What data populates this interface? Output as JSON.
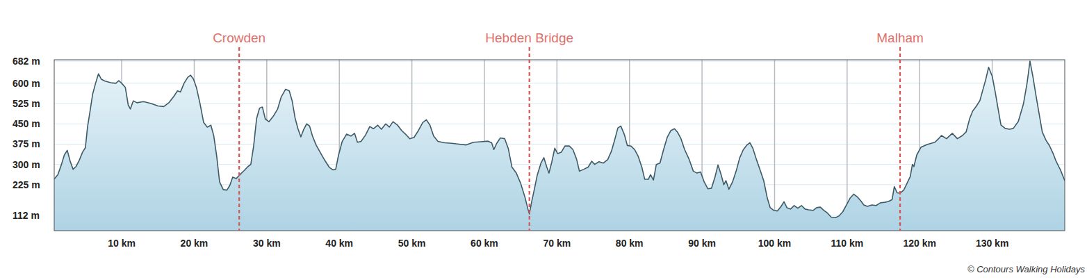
{
  "chart_data": {
    "type": "area",
    "color": "#3d5a66",
    "grid": true,
    "xlim": [
      0.7,
      140
    ],
    "ylim": [
      55,
      687
    ],
    "xticks": [
      {
        "value": 10,
        "label": "10 km"
      },
      {
        "value": 20,
        "label": "20 km"
      },
      {
        "value": 30,
        "label": "30 km"
      },
      {
        "value": 40,
        "label": "40 km"
      },
      {
        "value": 50,
        "label": "50 km"
      },
      {
        "value": 60,
        "label": "60 km"
      },
      {
        "value": 70,
        "label": "70 km"
      },
      {
        "value": 80,
        "label": "80 km"
      },
      {
        "value": 90,
        "label": "90 km"
      },
      {
        "value": 100,
        "label": "100 km"
      },
      {
        "value": 110,
        "label": "110 km"
      },
      {
        "value": 120,
        "label": "120 km"
      },
      {
        "value": 130,
        "label": "130 km"
      }
    ],
    "yticks": [
      {
        "value": 112,
        "label": "112 m"
      },
      {
        "value": 225,
        "label": "225 m"
      },
      {
        "value": 300,
        "label": "300 m"
      },
      {
        "value": 375,
        "label": "375 m"
      },
      {
        "value": 450,
        "label": "450 m"
      },
      {
        "value": 525,
        "label": "525 m"
      },
      {
        "value": 600,
        "label": "600 m"
      },
      {
        "value": 682,
        "label": "682 m"
      }
    ],
    "annotations": [
      {
        "label": "Crowden",
        "x": 26.2
      },
      {
        "label": "Hebden Bridge",
        "x": 66.2
      },
      {
        "label": "Malham",
        "x": 117.3
      }
    ],
    "credit": "© Contours Walking Holidays",
    "x": [
      0.7,
      1.2,
      1.7,
      2.1,
      2.5,
      2.9,
      3.3,
      3.7,
      4.1,
      4.6,
      5.0,
      5.3,
      5.6,
      6.0,
      6.4,
      6.8,
      7.2,
      7.7,
      8.5,
      9.2,
      9.6,
      10.0,
      10.5,
      10.9,
      11.2,
      11.6,
      12.1,
      13.0,
      14.0,
      15.0,
      15.8,
      16.5,
      17.2,
      17.7,
      18.1,
      18.6,
      19.1,
      19.5,
      19.9,
      20.3,
      20.8,
      21.3,
      21.8,
      22.3,
      22.7,
      23.1,
      23.5,
      24.0,
      24.5,
      24.9,
      25.3,
      25.8,
      26.3,
      26.9,
      27.4,
      27.8,
      28.2,
      28.6,
      29.0,
      29.4,
      29.8,
      30.3,
      30.9,
      31.5,
      32.0,
      32.6,
      33.1,
      33.5,
      33.9,
      34.3,
      34.7,
      35.1,
      35.5,
      35.9,
      36.3,
      36.8,
      37.4,
      38.0,
      38.6,
      39.1,
      39.5,
      39.9,
      40.4,
      41.0,
      41.6,
      42.1,
      42.5,
      43.0,
      43.6,
      44.2,
      44.7,
      45.3,
      45.8,
      46.4,
      46.9,
      47.4,
      48.0,
      48.6,
      49.2,
      49.7,
      50.3,
      50.9,
      51.5,
      52.0,
      52.5,
      53.0,
      53.6,
      54.5,
      55.5,
      56.5,
      57.5,
      58.5,
      59.5,
      60.5,
      61.0,
      61.3,
      61.7,
      62.2,
      62.8,
      63.3,
      63.8,
      64.4,
      65.0,
      65.6,
      66.0,
      66.2,
      66.5,
      66.9,
      67.3,
      67.8,
      68.2,
      68.6,
      68.9,
      69.3,
      69.7,
      70.1,
      70.6,
      71.1,
      71.7,
      72.2,
      72.7,
      73.1,
      73.7,
      74.3,
      74.8,
      75.2,
      75.8,
      76.4,
      77.0,
      77.5,
      77.9,
      78.4,
      78.8,
      79.3,
      79.7,
      80.2,
      80.7,
      81.2,
      81.7,
      82.1,
      82.6,
      82.9,
      83.3,
      83.7,
      84.2,
      84.7,
      85.2,
      85.7,
      86.2,
      86.6,
      87.1,
      87.6,
      88.2,
      88.8,
      89.3,
      89.8,
      90.3,
      90.8,
      91.3,
      91.8,
      92.2,
      92.6,
      93.0,
      93.3,
      93.7,
      94.2,
      94.7,
      95.2,
      95.7,
      96.2,
      96.6,
      97.0,
      97.5,
      98.0,
      98.5,
      99.0,
      99.4,
      99.9,
      100.4,
      100.9,
      101.3,
      101.7,
      102.2,
      102.7,
      103.2,
      103.7,
      104.2,
      104.7,
      105.3,
      105.8,
      106.3,
      106.8,
      107.3,
      107.8,
      108.4,
      108.9,
      109.4,
      109.9,
      110.4,
      110.9,
      111.4,
      111.9,
      112.3,
      112.8,
      113.4,
      114.0,
      114.6,
      115.2,
      115.7,
      116.2,
      116.5,
      116.9,
      117.3,
      117.8,
      118.2,
      118.7,
      119.0,
      119.2,
      119.6,
      120.2,
      121.1,
      122.1,
      122.6,
      123.0,
      123.7,
      124.5,
      125.2,
      125.9,
      126.4,
      126.9,
      127.3,
      127.8,
      128.3,
      128.7,
      129.1,
      129.5,
      130.0,
      130.4,
      130.7,
      131.2,
      131.8,
      132.4,
      132.9,
      133.6,
      134.3,
      134.8,
      135.0,
      135.2,
      135.6,
      136.0,
      136.4,
      136.9,
      137.4,
      137.9,
      138.4,
      138.8,
      139.4,
      140.0
    ],
    "values": [
      246,
      262,
      300,
      335,
      352,
      312,
      282,
      292,
      312,
      345,
      362,
      440,
      490,
      560,
      600,
      635,
      615,
      608,
      602,
      600,
      610,
      600,
      585,
      520,
      505,
      535,
      528,
      532,
      526,
      516,
      514,
      528,
      552,
      572,
      568,
      600,
      622,
      630,
      615,
      585,
      525,
      455,
      438,
      445,
      405,
      330,
      235,
      207,
      205,
      222,
      253,
      248,
      262,
      278,
      292,
      300,
      370,
      470,
      508,
      512,
      468,
      458,
      478,
      505,
      550,
      578,
      572,
      535,
      472,
      432,
      402,
      430,
      450,
      442,
      405,
      372,
      343,
      315,
      290,
      280,
      282,
      335,
      385,
      412,
      405,
      415,
      382,
      385,
      408,
      440,
      432,
      445,
      430,
      450,
      438,
      458,
      446,
      425,
      410,
      395,
      400,
      425,
      455,
      465,
      445,
      405,
      385,
      380,
      378,
      375,
      372,
      382,
      384,
      386,
      380,
      355,
      378,
      398,
      395,
      358,
      290,
      268,
      230,
      178,
      135,
      117,
      160,
      210,
      262,
      305,
      325,
      290,
      268,
      310,
      360,
      340,
      345,
      368,
      368,
      355,
      320,
      275,
      282,
      290,
      312,
      300,
      310,
      305,
      318,
      348,
      385,
      435,
      442,
      410,
      370,
      368,
      355,
      330,
      290,
      245,
      245,
      262,
      242,
      300,
      305,
      355,
      400,
      425,
      432,
      420,
      395,
      355,
      320,
      275,
      268,
      272,
      235,
      210,
      212,
      255,
      298,
      265,
      225,
      240,
      208,
      235,
      275,
      325,
      355,
      372,
      380,
      360,
      318,
      280,
      240,
      175,
      140,
      130,
      128,
      145,
      162,
      140,
      135,
      148,
      138,
      148,
      135,
      132,
      130,
      140,
      142,
      130,
      120,
      105,
      103,
      110,
      125,
      150,
      175,
      190,
      180,
      165,
      150,
      145,
      150,
      148,
      158,
      160,
      163,
      170,
      218,
      195,
      194,
      205,
      227,
      255,
      300,
      292,
      335,
      364,
      374,
      382,
      395,
      407,
      395,
      415,
      395,
      407,
      420,
      470,
      497,
      515,
      536,
      575,
      613,
      659,
      626,
      570,
      523,
      446,
      433,
      430,
      433,
      459,
      523,
      600,
      640,
      682,
      626,
      560,
      497,
      420,
      390,
      369,
      340,
      312,
      280,
      240
    ]
  }
}
